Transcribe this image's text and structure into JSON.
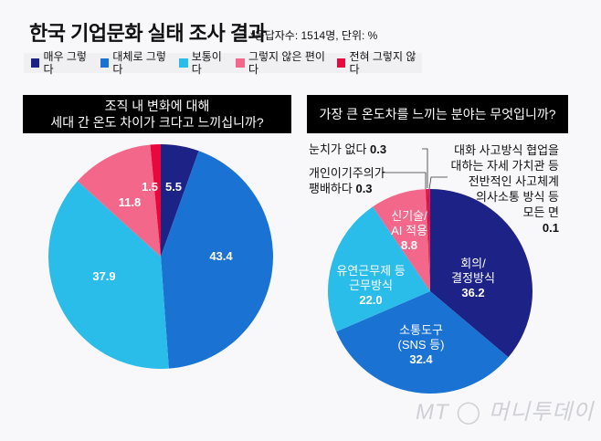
{
  "header": {
    "title": "한국 기업문화 실태 조사 결과",
    "note": "*응답자수: 1514명, 단위: %"
  },
  "legend": [
    {
      "label": "매우 그렇다",
      "color": "#1d2286"
    },
    {
      "label": "대체로 그렇다",
      "color": "#1a73d2"
    },
    {
      "label": "보통이다",
      "color": "#2bbde9"
    },
    {
      "label": "그렇지 않은 편이다",
      "color": "#f3688a"
    },
    {
      "label": "전혀 그렇지 않다",
      "color": "#e8083e"
    }
  ],
  "chart_data": [
    {
      "type": "pie",
      "title": "조직 내 변화에 대해 세대 간 온도 차이가 크다고 느끼십니까?",
      "title_lines": [
        "조직 내 변화에 대해",
        "세대 간 온도 차이가 크다고 느끼십니까?"
      ],
      "start": "top",
      "direction": "clockwise",
      "slices": [
        {
          "label": "매우 그렇다",
          "value": 5.5,
          "value_text": "5.5",
          "color": "#1d2286"
        },
        {
          "label": "대체로 그렇다",
          "value": 43.4,
          "value_text": "43.4",
          "color": "#1a73d2"
        },
        {
          "label": "보통이다",
          "value": 37.9,
          "value_text": "37.9",
          "color": "#2bbde9"
        },
        {
          "label": "그렇지 않은 편이다",
          "value": 11.8,
          "value_text": "11.8",
          "color": "#f3688a"
        },
        {
          "label": "전혀 그렇지 않다",
          "value": 1.5,
          "value_text": "1.5",
          "color": "#e8083e"
        }
      ]
    },
    {
      "type": "pie",
      "title": "가장 큰 온도차를 느끼는 분야는 무엇입니까?",
      "start": "top",
      "direction": "clockwise",
      "slices": [
        {
          "label": "회의/ 결정방식",
          "lines": [
            "회의/",
            "결정방식"
          ],
          "value": 36.2,
          "value_text": "36.2",
          "color": "#1d2286"
        },
        {
          "label": "소통도구 (SNS 등)",
          "lines": [
            "소통도구",
            "(SNS 등)"
          ],
          "value": 32.4,
          "value_text": "32.4",
          "color": "#1a73d2"
        },
        {
          "label": "유연근무제 등 근무방식",
          "lines": [
            "유연근무제 등",
            "근무방식"
          ],
          "value": 22.0,
          "value_text": "22.0",
          "color": "#2bbde9"
        },
        {
          "label": "신기술/ AI 적용",
          "lines": [
            "신기술/",
            "AI 적용"
          ],
          "value": 8.8,
          "value_text": "8.8",
          "color": "#f3688a"
        },
        {
          "label": "눈치가 없다",
          "lines": [
            "눈치가 없다"
          ],
          "value": 0.3,
          "value_text": "0.3",
          "color": "#e8083e"
        },
        {
          "label": "개인이기주의가 팽배하다",
          "lines": [
            "개인이기주의가",
            "팽배하다"
          ],
          "value": 0.3,
          "value_text": "0.3",
          "color": "#c2185b"
        },
        {
          "label": "대화 사고방식 협업을 대하는 자세 가치관 등 전반적인 사고체계 의사소통 방식 등 모든 면",
          "lines": [
            "대화 사고방식 협업을",
            "대하는 자세 가치관 등",
            "전반적인 사고체계",
            "의사소통 방식 등",
            "모든 면"
          ],
          "value": 0.1,
          "value_text": "0.1",
          "color": "#e8083e"
        }
      ]
    }
  ],
  "watermark": "MT 머니투데이"
}
